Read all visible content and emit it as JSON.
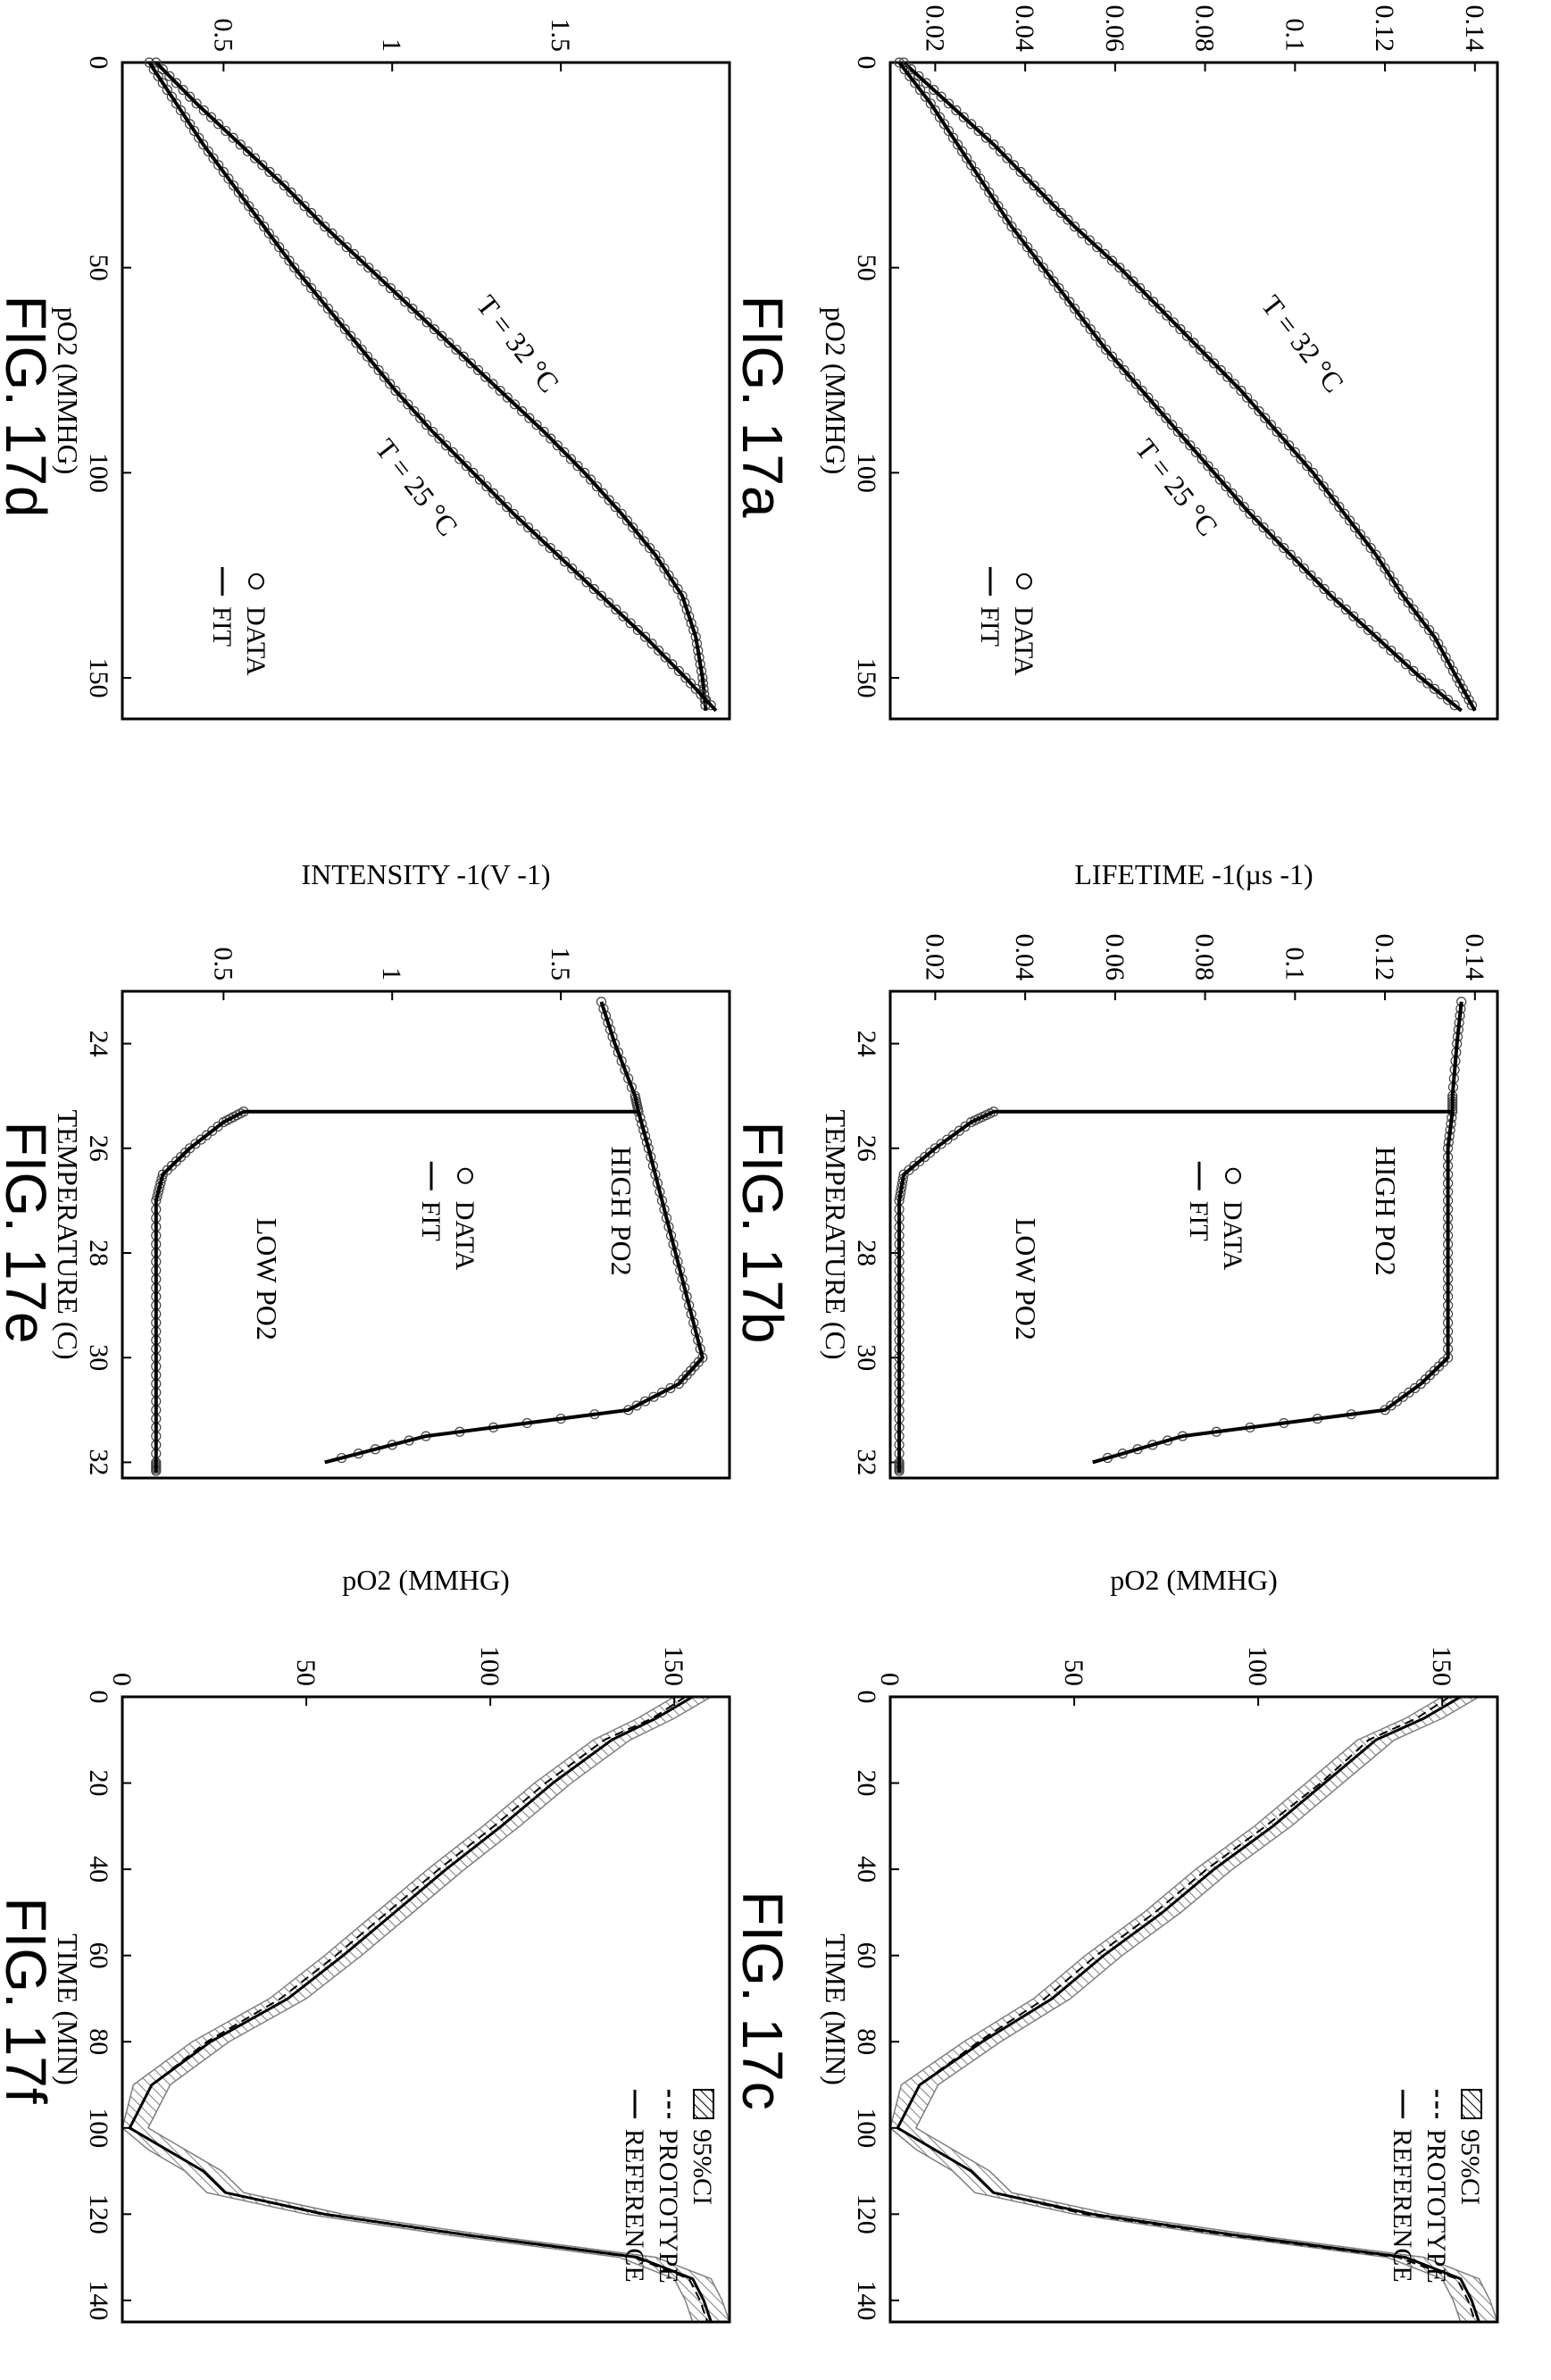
{
  "chart_data": [
    {
      "id": "fig17a",
      "figure_label": "FIG. 17a",
      "type": "scatter",
      "xlabel": "pO2 (MMHG)",
      "ylabel": "LIFETIME -1(µs -1)",
      "xlim": [
        0,
        160
      ],
      "ylim": [
        0.01,
        0.145
      ],
      "xticks": [
        0,
        50,
        100,
        150
      ],
      "yticks": [
        0.02,
        0.04,
        0.06,
        0.08,
        0.1,
        0.12,
        0.14
      ],
      "ytick_labels": [
        "0.02",
        "0.04",
        "0.06",
        "0.08",
        "0.1",
        "0.12",
        "0.14"
      ],
      "legend": {
        "placement": "right",
        "entries": [
          {
            "marker": "circle",
            "label": "DATA"
          },
          {
            "marker": "line",
            "label": "FIT"
          }
        ]
      },
      "annotations": [
        {
          "text": "T = 32 °C",
          "x": 70,
          "y": 0.1
        },
        {
          "text": "T = 25 °C",
          "x": 105,
          "y": 0.072
        }
      ],
      "series": [
        {
          "name": "T = 32 °C",
          "marker": "circle+line",
          "x": [
            0,
            10,
            20,
            30,
            40,
            50,
            60,
            70,
            80,
            90,
            100,
            110,
            120,
            130,
            140,
            150,
            158
          ],
          "y": [
            0.013,
            0.023,
            0.033,
            0.042,
            0.051,
            0.061,
            0.07,
            0.079,
            0.088,
            0.096,
            0.104,
            0.111,
            0.118,
            0.124,
            0.131,
            0.136,
            0.14
          ]
        },
        {
          "name": "T = 25 °C",
          "marker": "circle+line",
          "x": [
            0,
            10,
            20,
            30,
            40,
            50,
            60,
            70,
            80,
            90,
            100,
            110,
            120,
            130,
            140,
            150,
            158
          ],
          "y": [
            0.012,
            0.019,
            0.025,
            0.031,
            0.037,
            0.044,
            0.051,
            0.058,
            0.066,
            0.074,
            0.082,
            0.09,
            0.099,
            0.108,
            0.118,
            0.128,
            0.137
          ]
        }
      ]
    },
    {
      "id": "fig17b",
      "figure_label": "FIG. 17b",
      "type": "scatter",
      "xlabel": "TEMPERATURE (C)",
      "ylabel": "LIFETIME -1(µs -1)",
      "xlim": [
        23,
        32.3
      ],
      "ylim": [
        0.01,
        0.145
      ],
      "xticks": [
        24,
        26,
        28,
        30,
        32
      ],
      "yticks": [
        0.02,
        0.04,
        0.06,
        0.08,
        0.1,
        0.12,
        0.14
      ],
      "ytick_labels": [
        "0.02",
        "0.04",
        "0.06",
        "0.08",
        "0.1",
        "0.12",
        "0.14"
      ],
      "legend": {
        "placement": "center",
        "entries": [
          {
            "marker": "circle",
            "label": "DATA"
          },
          {
            "marker": "line",
            "label": "FIT"
          }
        ]
      },
      "annotations": [
        {
          "text": "HIGH PO2",
          "x": 27.2,
          "y": 0.118
        },
        {
          "text": "LOW PO2",
          "x": 28.5,
          "y": 0.038
        }
      ],
      "series": [
        {
          "name": "HIGH PO2",
          "marker": "circle+line",
          "x": [
            23.2,
            24,
            25,
            25.3,
            26,
            27,
            28,
            29,
            30,
            30.5,
            31,
            31.5,
            32
          ],
          "y": [
            0.137,
            0.136,
            0.135,
            0.135,
            0.134,
            0.134,
            0.134,
            0.134,
            0.134,
            0.128,
            0.12,
            0.075,
            0.055
          ]
        },
        {
          "name": "LOW PO2",
          "marker": "circle+line",
          "x": [
            25.3,
            25.5,
            26,
            26.5,
            27,
            28,
            29,
            30,
            31,
            32,
            32.2
          ],
          "y": [
            0.033,
            0.028,
            0.02,
            0.013,
            0.012,
            0.012,
            0.012,
            0.012,
            0.012,
            0.012,
            0.012
          ]
        }
      ]
    },
    {
      "id": "fig17c",
      "figure_label": "FIG. 17c",
      "type": "line",
      "xlabel": "TIME (MIN)",
      "ylabel": "pO2 (MMHG)",
      "xlim": [
        0,
        145
      ],
      "ylim": [
        0,
        165
      ],
      "xticks": [
        0,
        20,
        40,
        60,
        80,
        100,
        120,
        140
      ],
      "yticks": [
        0,
        50,
        100,
        150
      ],
      "legend": {
        "placement": "top-right",
        "entries": [
          {
            "marker": "hatch",
            "label": "95%CI"
          },
          {
            "marker": "dashed",
            "label": "PROTOTYPE"
          },
          {
            "marker": "solid",
            "label": "REFERENCE"
          }
        ]
      },
      "series": [
        {
          "name": "REFERENCE",
          "x": [
            0,
            5,
            10,
            20,
            30,
            40,
            50,
            60,
            70,
            80,
            90,
            100,
            105,
            110,
            115,
            120,
            125,
            130,
            135,
            140,
            145
          ],
          "y": [
            155,
            145,
            132,
            118,
            104,
            88,
            74,
            58,
            44,
            25,
            8,
            2,
            12,
            22,
            28,
            55,
            95,
            140,
            155,
            158,
            160
          ]
        },
        {
          "name": "PROTOTYPE",
          "x": [
            0,
            5,
            10,
            20,
            30,
            40,
            50,
            60,
            70,
            80,
            90,
            100,
            105,
            110,
            115,
            120,
            125,
            130,
            135,
            140,
            145
          ],
          "y": [
            152,
            143,
            130,
            117,
            102,
            86,
            72,
            56,
            42,
            24,
            8,
            2,
            12,
            22,
            28,
            53,
            93,
            138,
            154,
            157,
            159
          ]
        }
      ]
    },
    {
      "id": "fig17d",
      "figure_label": "FIG. 17d",
      "type": "scatter",
      "xlabel": "pO2 (MMHG)",
      "ylabel": "INTENSITY -1(V -1)",
      "xlim": [
        0,
        160
      ],
      "ylim": [
        0.2,
        2.0
      ],
      "xticks": [
        0,
        50,
        100,
        150
      ],
      "yticks": [
        0.5,
        1,
        1.5
      ],
      "ytick_labels": [
        "0.5",
        "1",
        "1.5"
      ],
      "legend": {
        "placement": "right",
        "entries": [
          {
            "marker": "circle",
            "label": "DATA"
          },
          {
            "marker": "line",
            "label": "FIT"
          }
        ]
      },
      "annotations": [
        {
          "text": "T = 32 °C",
          "x": 70,
          "y": 1.35
        },
        {
          "text": "T = 25 °C",
          "x": 105,
          "y": 1.05
        }
      ],
      "series": [
        {
          "name": "T = 32 °C",
          "marker": "circle+line",
          "x": [
            0,
            10,
            20,
            30,
            40,
            50,
            60,
            70,
            80,
            90,
            100,
            110,
            120,
            130,
            140,
            150,
            158
          ],
          "y": [
            0.3,
            0.42,
            0.55,
            0.68,
            0.8,
            0.93,
            1.06,
            1.19,
            1.32,
            1.45,
            1.57,
            1.68,
            1.78,
            1.86,
            1.9,
            1.92,
            1.93
          ]
        },
        {
          "name": "T = 25 °C",
          "marker": "circle+line",
          "x": [
            0,
            10,
            20,
            30,
            40,
            50,
            60,
            70,
            80,
            90,
            100,
            110,
            120,
            130,
            140,
            150,
            158
          ],
          "y": [
            0.28,
            0.36,
            0.44,
            0.53,
            0.62,
            0.71,
            0.81,
            0.91,
            1.01,
            1.12,
            1.24,
            1.36,
            1.49,
            1.62,
            1.75,
            1.87,
            1.96
          ]
        }
      ]
    },
    {
      "id": "fig17e",
      "figure_label": "FIG. 17e",
      "type": "scatter",
      "xlabel": "TEMPERATURE (C)",
      "ylabel": "INTENSITY -1(V -1)",
      "xlim": [
        23,
        32.3
      ],
      "ylim": [
        0.2,
        2.0
      ],
      "xticks": [
        24,
        26,
        28,
        30,
        32
      ],
      "yticks": [
        0.5,
        1,
        1.5
      ],
      "ytick_labels": [
        "0.5",
        "1",
        "1.5"
      ],
      "legend": {
        "placement": "center",
        "entries": [
          {
            "marker": "circle",
            "label": "DATA"
          },
          {
            "marker": "line",
            "label": "FIT"
          }
        ]
      },
      "annotations": [
        {
          "text": "HIGH PO2",
          "x": 27.2,
          "y": 1.65
        },
        {
          "text": "LOW PO2",
          "x": 28.5,
          "y": 0.6
        }
      ],
      "series": [
        {
          "name": "HIGH PO2",
          "marker": "circle+line",
          "x": [
            23.2,
            24,
            25,
            25.3,
            26,
            27,
            28,
            29,
            30,
            30.5,
            31,
            31.5,
            32
          ],
          "y": [
            1.62,
            1.66,
            1.72,
            1.73,
            1.76,
            1.8,
            1.84,
            1.88,
            1.92,
            1.85,
            1.7,
            1.1,
            0.8
          ]
        },
        {
          "name": "LOW PO2",
          "marker": "circle+line",
          "x": [
            25.3,
            25.5,
            26,
            26.5,
            27,
            28,
            29,
            30,
            31,
            32,
            32.2
          ],
          "y": [
            0.56,
            0.5,
            0.4,
            0.32,
            0.3,
            0.3,
            0.3,
            0.3,
            0.3,
            0.3,
            0.3
          ]
        }
      ]
    },
    {
      "id": "fig17f",
      "figure_label": "FIG. 17f",
      "type": "line",
      "xlabel": "TIME (MIN)",
      "ylabel": "pO2 (MMHG)",
      "xlim": [
        0,
        145
      ],
      "ylim": [
        0,
        165
      ],
      "xticks": [
        0,
        20,
        40,
        60,
        80,
        100,
        120,
        140
      ],
      "yticks": [
        0,
        50,
        100,
        150
      ],
      "legend": {
        "placement": "top-right",
        "entries": [
          {
            "marker": "hatch",
            "label": "95%CI"
          },
          {
            "marker": "dashed",
            "label": "PROTOTYPE"
          },
          {
            "marker": "solid",
            "label": "REFERENCE"
          }
        ]
      },
      "series": [
        {
          "name": "REFERENCE",
          "x": [
            0,
            5,
            10,
            20,
            30,
            40,
            50,
            60,
            70,
            80,
            90,
            100,
            105,
            110,
            115,
            120,
            125,
            130,
            135,
            140,
            145
          ],
          "y": [
            155,
            145,
            133,
            117,
            103,
            88,
            74,
            60,
            45,
            24,
            8,
            2,
            12,
            22,
            28,
            55,
            95,
            140,
            155,
            158,
            160
          ]
        },
        {
          "name": "PROTOTYPE",
          "x": [
            0,
            5,
            10,
            20,
            30,
            40,
            50,
            60,
            70,
            80,
            90,
            100,
            105,
            110,
            115,
            120,
            125,
            130,
            135,
            140,
            145
          ],
          "y": [
            153,
            144,
            131,
            115,
            101,
            86,
            72,
            58,
            43,
            23,
            8,
            2,
            12,
            22,
            28,
            54,
            94,
            139,
            154,
            157,
            159
          ]
        }
      ]
    }
  ]
}
